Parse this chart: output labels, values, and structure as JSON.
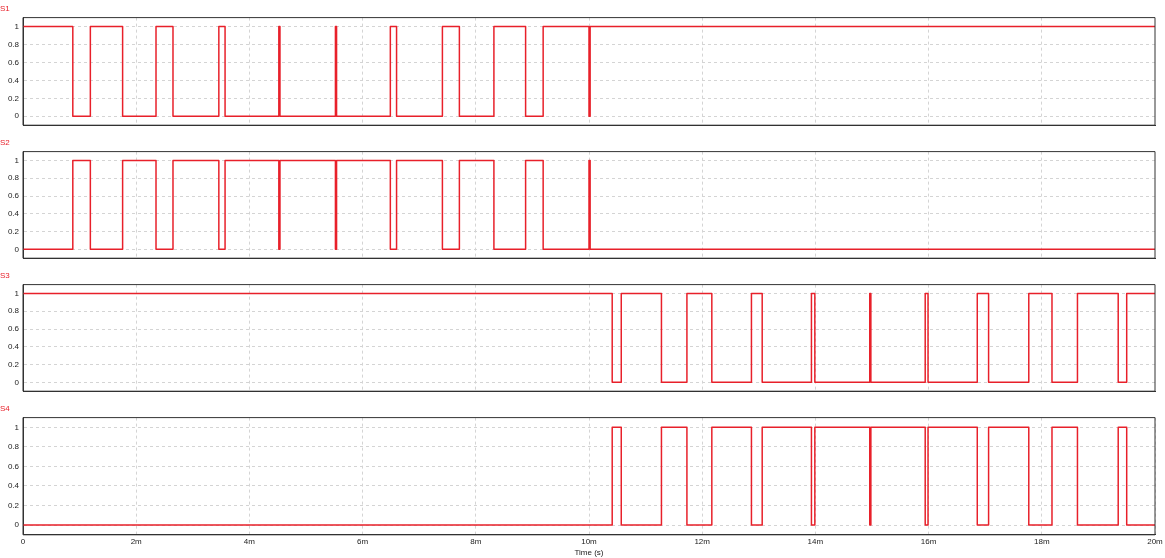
{
  "chart_data": [
    {
      "type": "step",
      "title": "S1",
      "x": [
        0,
        0.88,
        1.19,
        1.76,
        2.35,
        2.65,
        3.46,
        3.57,
        4.52,
        4.54,
        5.52,
        5.54,
        6.49,
        6.6,
        7.41,
        7.71,
        8.32,
        8.88,
        9.19,
        10,
        10.02,
        20
      ],
      "series": [
        {
          "color": "#e8202a",
          "values": [
            1,
            0,
            1,
            0,
            1,
            0,
            1,
            0,
            1,
            0,
            1,
            0,
            1,
            0,
            1,
            0,
            1,
            0,
            1,
            0,
            1,
            1
          ]
        }
      ],
      "xlim": [
        0,
        20
      ],
      "xticks": [
        2,
        4,
        6,
        8,
        10,
        12,
        14,
        16,
        18
      ],
      "ylim": [
        -0.1,
        1.1
      ],
      "yticks": [
        0,
        0.2,
        0.4,
        0.6,
        0.8,
        1
      ],
      "grid": true,
      "tick_labels": "y"
    },
    {
      "type": "step",
      "title": "S2",
      "x": [
        0,
        0.88,
        1.19,
        1.76,
        2.35,
        2.65,
        3.46,
        3.57,
        4.52,
        4.54,
        5.52,
        5.54,
        6.49,
        6.6,
        7.41,
        7.71,
        8.32,
        8.88,
        9.19,
        10,
        10.02,
        20
      ],
      "series": [
        {
          "color": "#e8202a",
          "values": [
            0,
            1,
            0,
            1,
            0,
            1,
            0,
            1,
            0,
            1,
            0,
            1,
            0,
            1,
            0,
            1,
            0,
            1,
            0,
            1,
            0,
            0
          ]
        }
      ],
      "xlim": [
        0,
        20
      ],
      "xticks": [
        2,
        4,
        6,
        8,
        10,
        12,
        14,
        16,
        18
      ],
      "ylim": [
        -0.1,
        1.1
      ],
      "yticks": [
        0,
        0.2,
        0.4,
        0.6,
        0.8,
        1
      ],
      "grid": true,
      "tick_labels": "y"
    },
    {
      "type": "step",
      "title": "S3",
      "x": [
        0,
        10.41,
        10.57,
        11.28,
        11.73,
        12.17,
        12.87,
        13.06,
        13.93,
        13.99,
        14.96,
        14.98,
        15.94,
        15.99,
        16.86,
        17.06,
        17.77,
        18.18,
        18.63,
        19.35,
        19.5,
        20
      ],
      "series": [
        {
          "color": "#e8202a",
          "values": [
            1,
            0,
            1,
            0,
            1,
            0,
            1,
            0,
            1,
            0,
            1,
            0,
            1,
            0,
            1,
            0,
            1,
            0,
            1,
            0,
            1,
            1
          ]
        }
      ],
      "xlim": [
        0,
        20
      ],
      "xticks": [
        2,
        4,
        6,
        8,
        10,
        12,
        14,
        16,
        18
      ],
      "ylim": [
        -0.1,
        1.1
      ],
      "yticks": [
        0,
        0.2,
        0.4,
        0.6,
        0.8,
        1
      ],
      "grid": true,
      "tick_labels": "y"
    },
    {
      "type": "step",
      "title": "S4",
      "xlabel": "Time (s)",
      "x": [
        0,
        10.41,
        10.57,
        11.28,
        11.73,
        12.17,
        12.87,
        13.06,
        13.93,
        13.99,
        14.96,
        14.98,
        15.94,
        15.99,
        16.86,
        17.06,
        17.77,
        18.18,
        18.63,
        19.35,
        19.5,
        20
      ],
      "series": [
        {
          "color": "#e8202a",
          "values": [
            0,
            1,
            0,
            1,
            0,
            1,
            0,
            1,
            0,
            1,
            0,
            1,
            0,
            1,
            0,
            1,
            0,
            1,
            0,
            1,
            0,
            0
          ]
        }
      ],
      "xlim": [
        0,
        20
      ],
      "xticks": [
        0,
        {
          "value": 2,
          "label": "2m"
        },
        {
          "value": 4,
          "label": "4m"
        },
        {
          "value": 6,
          "label": "6m"
        },
        {
          "value": 8,
          "label": "8m"
        },
        {
          "value": 10,
          "label": "10m"
        },
        {
          "value": 12,
          "label": "12m"
        },
        {
          "value": 14,
          "label": "14m"
        },
        {
          "value": 16,
          "label": "16m"
        },
        {
          "value": 18,
          "label": "18m"
        },
        {
          "value": 20,
          "label": "20m"
        }
      ],
      "ylim": [
        -0.1,
        1.1
      ],
      "yticks": [
        0,
        0.2,
        0.4,
        0.6,
        0.8,
        1
      ],
      "grid": true
    }
  ]
}
